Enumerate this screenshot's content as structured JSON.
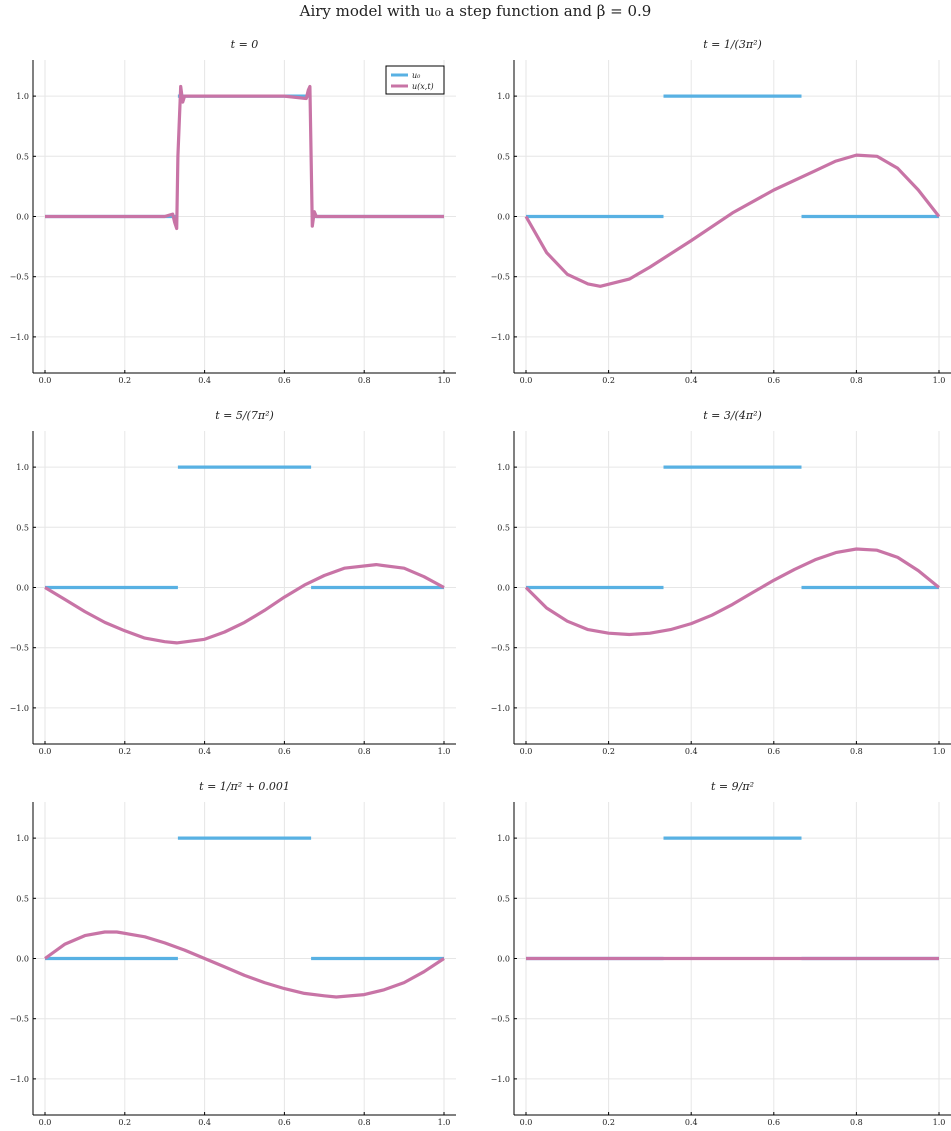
{
  "figure": {
    "suptitle": "Airy model with u₀ a step function and β =  0.9"
  },
  "colors": {
    "u0": "#58b1e3",
    "u": "#c874a6",
    "grid": "#e6e6e6",
    "axis": "#000000"
  },
  "chart_data": [
    {
      "type": "line",
      "title": "t = 0",
      "xlim": [
        0,
        1
      ],
      "ylim": [
        -1.3,
        1.3
      ],
      "xticks": [
        0.0,
        0.2,
        0.4,
        0.6,
        0.8,
        1.0
      ],
      "yticks": [
        -1.0,
        -0.5,
        0.0,
        0.5,
        1.0
      ],
      "legend": {
        "position": "top-right",
        "entries": [
          "u₀",
          "u(x,t)"
        ]
      },
      "series": [
        {
          "name": "u₀",
          "segments": [
            {
              "x": [
                0,
                0.333
              ],
              "y": [
                0,
                0
              ]
            },
            {
              "x": [
                0.333,
                0.667
              ],
              "y": [
                1,
                1
              ]
            },
            {
              "x": [
                0.667,
                1.0
              ],
              "y": [
                0,
                0
              ]
            }
          ]
        },
        {
          "name": "u(x,t)",
          "x": [
            0,
            0.3,
            0.32,
            0.325,
            0.33,
            0.333,
            0.34,
            0.345,
            0.35,
            0.6,
            0.655,
            0.66,
            0.664,
            0.667,
            0.67,
            0.675,
            0.68,
            1.0
          ],
          "y": [
            0,
            0,
            0.02,
            -0.05,
            -0.1,
            0.5,
            1.08,
            0.95,
            1.0,
            1.0,
            0.98,
            1.05,
            1.08,
            0.5,
            -0.08,
            0.04,
            0.0,
            0
          ]
        }
      ]
    },
    {
      "type": "line",
      "title": "t = 1/(3π²)",
      "xlim": [
        0,
        1
      ],
      "ylim": [
        -1.3,
        1.3
      ],
      "xticks": [
        0.0,
        0.2,
        0.4,
        0.6,
        0.8,
        1.0
      ],
      "yticks": [
        -1.0,
        -0.5,
        0.0,
        0.5,
        1.0
      ],
      "series": [
        {
          "name": "u₀",
          "segments": [
            {
              "x": [
                0,
                0.333
              ],
              "y": [
                0,
                0
              ]
            },
            {
              "x": [
                0.333,
                0.667
              ],
              "y": [
                1,
                1
              ]
            },
            {
              "x": [
                0.667,
                1.0
              ],
              "y": [
                0,
                0
              ]
            }
          ]
        },
        {
          "name": "u(x,t)",
          "x": [
            0,
            0.05,
            0.1,
            0.15,
            0.18,
            0.25,
            0.3,
            0.4,
            0.5,
            0.6,
            0.7,
            0.75,
            0.8,
            0.85,
            0.9,
            0.95,
            1.0
          ],
          "y": [
            0,
            -0.3,
            -0.48,
            -0.56,
            -0.58,
            -0.52,
            -0.42,
            -0.2,
            0.03,
            0.22,
            0.38,
            0.46,
            0.51,
            0.5,
            0.4,
            0.22,
            0
          ]
        }
      ]
    },
    {
      "type": "line",
      "title": "t = 5/(7π²)",
      "xlim": [
        0,
        1
      ],
      "ylim": [
        -1.3,
        1.3
      ],
      "xticks": [
        0.0,
        0.2,
        0.4,
        0.6,
        0.8,
        1.0
      ],
      "yticks": [
        -1.0,
        -0.5,
        0.0,
        0.5,
        1.0
      ],
      "series": [
        {
          "name": "u₀",
          "segments": [
            {
              "x": [
                0,
                0.333
              ],
              "y": [
                0,
                0
              ]
            },
            {
              "x": [
                0.333,
                0.667
              ],
              "y": [
                1,
                1
              ]
            },
            {
              "x": [
                0.667,
                1.0
              ],
              "y": [
                0,
                0
              ]
            }
          ]
        },
        {
          "name": "u(x,t)",
          "x": [
            0,
            0.05,
            0.1,
            0.15,
            0.2,
            0.25,
            0.3,
            0.33,
            0.4,
            0.45,
            0.5,
            0.55,
            0.6,
            0.65,
            0.7,
            0.75,
            0.83,
            0.9,
            0.95,
            1.0
          ],
          "y": [
            0,
            -0.1,
            -0.2,
            -0.29,
            -0.36,
            -0.42,
            -0.45,
            -0.46,
            -0.43,
            -0.37,
            -0.29,
            -0.19,
            -0.08,
            0.02,
            0.1,
            0.16,
            0.19,
            0.16,
            0.09,
            0
          ]
        }
      ]
    },
    {
      "type": "line",
      "title": "t = 3/(4π²)",
      "xlim": [
        0,
        1
      ],
      "ylim": [
        -1.3,
        1.3
      ],
      "xticks": [
        0.0,
        0.2,
        0.4,
        0.6,
        0.8,
        1.0
      ],
      "yticks": [
        -1.0,
        -0.5,
        0.0,
        0.5,
        1.0
      ],
      "series": [
        {
          "name": "u₀",
          "segments": [
            {
              "x": [
                0,
                0.333
              ],
              "y": [
                0,
                0
              ]
            },
            {
              "x": [
                0.333,
                0.667
              ],
              "y": [
                1,
                1
              ]
            },
            {
              "x": [
                0.667,
                1.0
              ],
              "y": [
                0,
                0
              ]
            }
          ]
        },
        {
          "name": "u(x,t)",
          "x": [
            0,
            0.05,
            0.1,
            0.15,
            0.2,
            0.25,
            0.3,
            0.35,
            0.4,
            0.45,
            0.5,
            0.55,
            0.6,
            0.65,
            0.7,
            0.75,
            0.8,
            0.85,
            0.9,
            0.95,
            1.0
          ],
          "y": [
            0,
            -0.17,
            -0.28,
            -0.35,
            -0.38,
            -0.39,
            -0.38,
            -0.35,
            -0.3,
            -0.23,
            -0.14,
            -0.04,
            0.06,
            0.15,
            0.23,
            0.29,
            0.32,
            0.31,
            0.25,
            0.14,
            0
          ]
        }
      ]
    },
    {
      "type": "line",
      "title": "t = 1/π² + 0.001",
      "xlim": [
        0,
        1
      ],
      "ylim": [
        -1.3,
        1.3
      ],
      "xticks": [
        0.0,
        0.2,
        0.4,
        0.6,
        0.8,
        1.0
      ],
      "yticks": [
        -1.0,
        -0.5,
        0.0,
        0.5,
        1.0
      ],
      "series": [
        {
          "name": "u₀",
          "segments": [
            {
              "x": [
                0,
                0.333
              ],
              "y": [
                0,
                0
              ]
            },
            {
              "x": [
                0.333,
                0.667
              ],
              "y": [
                1,
                1
              ]
            },
            {
              "x": [
                0.667,
                1.0
              ],
              "y": [
                0,
                0
              ]
            }
          ]
        },
        {
          "name": "u(x,t)",
          "x": [
            0,
            0.05,
            0.1,
            0.15,
            0.18,
            0.25,
            0.3,
            0.35,
            0.4,
            0.45,
            0.5,
            0.55,
            0.6,
            0.65,
            0.7,
            0.73,
            0.8,
            0.85,
            0.9,
            0.95,
            1.0
          ],
          "y": [
            0,
            0.12,
            0.19,
            0.22,
            0.22,
            0.18,
            0.13,
            0.07,
            0.0,
            -0.07,
            -0.14,
            -0.2,
            -0.25,
            -0.29,
            -0.31,
            -0.32,
            -0.3,
            -0.26,
            -0.2,
            -0.11,
            0
          ]
        }
      ]
    },
    {
      "type": "line",
      "title": "t = 9/π²",
      "xlim": [
        0,
        1
      ],
      "ylim": [
        -1.3,
        1.3
      ],
      "xticks": [
        0.0,
        0.2,
        0.4,
        0.6,
        0.8,
        1.0
      ],
      "yticks": [
        -1.0,
        -0.5,
        0.0,
        0.5,
        1.0
      ],
      "series": [
        {
          "name": "u₀",
          "segments": [
            {
              "x": [
                0,
                0.333
              ],
              "y": [
                0,
                0
              ]
            },
            {
              "x": [
                0.333,
                0.667
              ],
              "y": [
                1,
                1
              ]
            },
            {
              "x": [
                0.667,
                1.0
              ],
              "y": [
                0,
                0
              ]
            }
          ]
        },
        {
          "name": "u(x,t)",
          "x": [
            0,
            0.5,
            1.0
          ],
          "y": [
            0,
            0,
            0
          ]
        }
      ]
    }
  ]
}
